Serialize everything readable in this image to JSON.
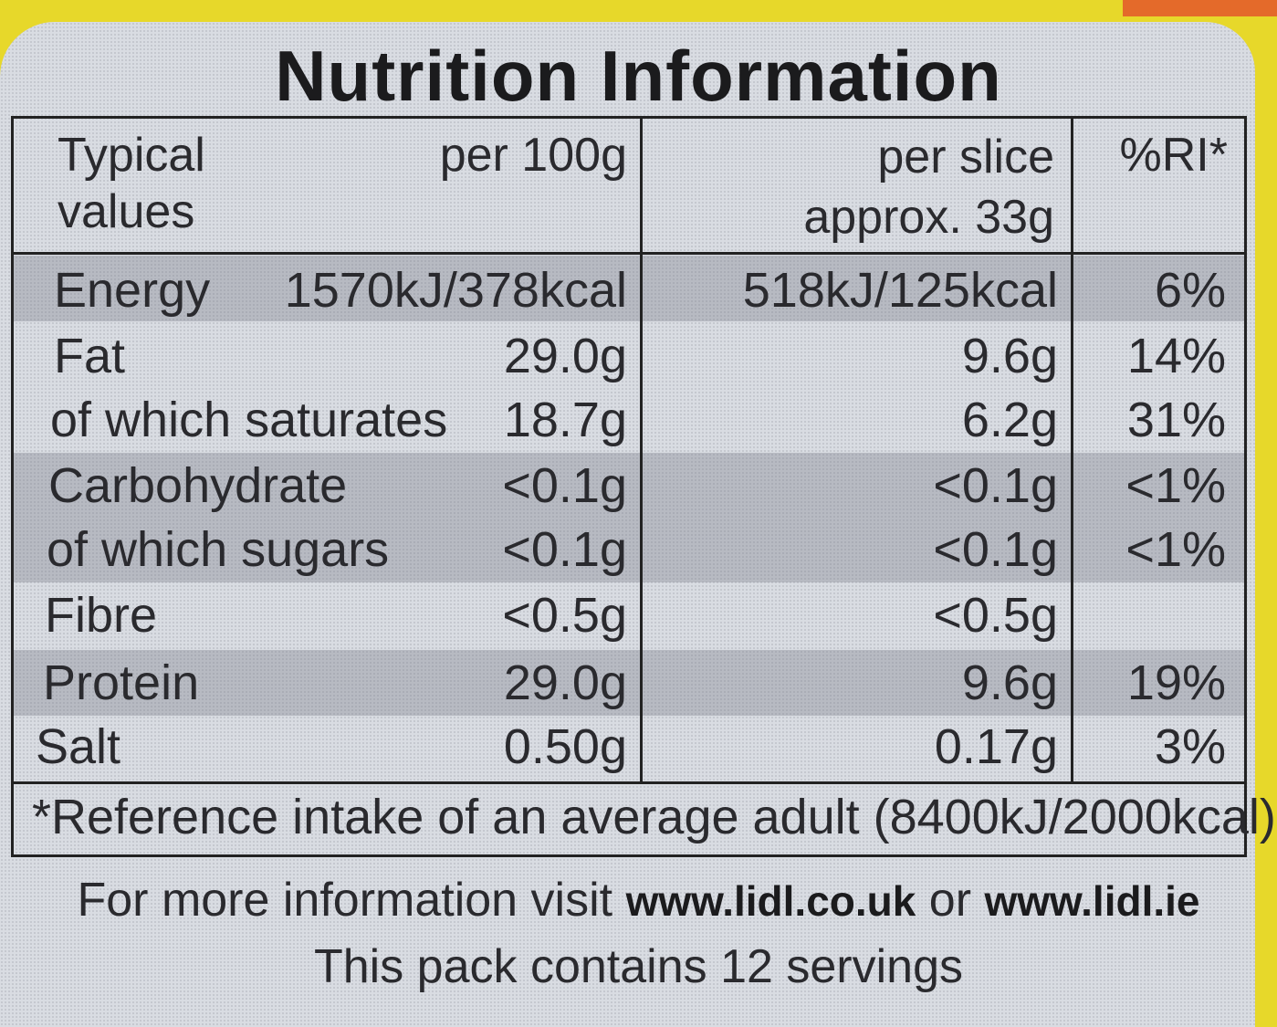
{
  "title": "Nutrition Information",
  "header": {
    "typical": "Typical",
    "values": "values",
    "per100": "per 100g",
    "per_slice": "per slice",
    "approx": "approx. 33g",
    "ri": "%RI*"
  },
  "rows": [
    {
      "name": "Energy",
      "per100": "1570kJ/378kcal",
      "slice": "518kJ/125kcal",
      "ri": "6%"
    },
    {
      "name": "Fat",
      "per100": "29.0g",
      "slice": "9.6g",
      "ri": "14%"
    },
    {
      "name": "of which saturates",
      "per100": "18.7g",
      "slice": "6.2g",
      "ri": "31%"
    },
    {
      "name": "Carbohydrate",
      "per100": "<0.1g",
      "slice": "<0.1g",
      "ri": "<1%"
    },
    {
      "name": "of which sugars",
      "per100": "<0.1g",
      "slice": "<0.1g",
      "ri": "<1%"
    },
    {
      "name": "Fibre",
      "per100": "<0.5g",
      "slice": "<0.5g",
      "ri": ""
    },
    {
      "name": "Protein",
      "per100": "29.0g",
      "slice": "9.6g",
      "ri": "19%"
    },
    {
      "name": "Salt",
      "per100": "0.50g",
      "slice": "0.17g",
      "ri": "3%"
    }
  ],
  "footnote": "*Reference intake of an average adult (8400kJ/2000kcal)",
  "more_info_prefix": "For more information visit",
  "link_uk": "www.lidl.co.uk",
  "or": "or",
  "link_ie": "www.lidl.ie",
  "servings": "This pack contains 12 servings"
}
